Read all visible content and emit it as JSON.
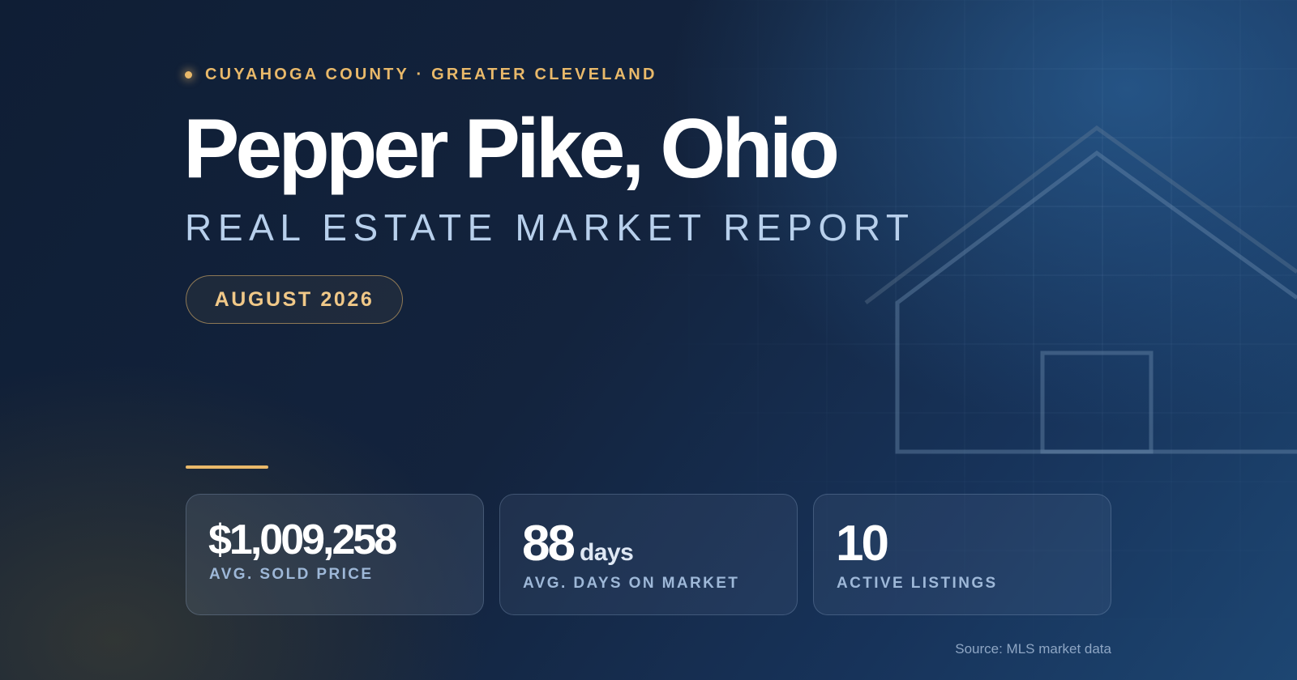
{
  "header": {
    "location": "CUYAHOGA COUNTY · GREATER CLEVELAND",
    "title": "Pepper Pike, Ohio",
    "subtitle": "REAL ESTATE MARKET REPORT",
    "date": "AUGUST 2026"
  },
  "stats": [
    {
      "value": "$1,009,258",
      "unit": "",
      "label": "AVG. SOLD PRICE"
    },
    {
      "value": "88",
      "unit": "days",
      "label": "AVG. DAYS ON MARKET"
    },
    {
      "value": "10",
      "unit": "",
      "label": "ACTIVE LISTINGS"
    }
  ],
  "footer": {
    "source": "Source: MLS market data"
  },
  "colors": {
    "background": "#13233d",
    "accent_gold": "#e9b96a",
    "text_primary": "#ffffff",
    "text_secondary": "#b8d0ec",
    "label_blue": "#9eb8d8"
  },
  "icons": {
    "house_outline": "house-outline-icon",
    "location_dot": "dot-icon"
  }
}
